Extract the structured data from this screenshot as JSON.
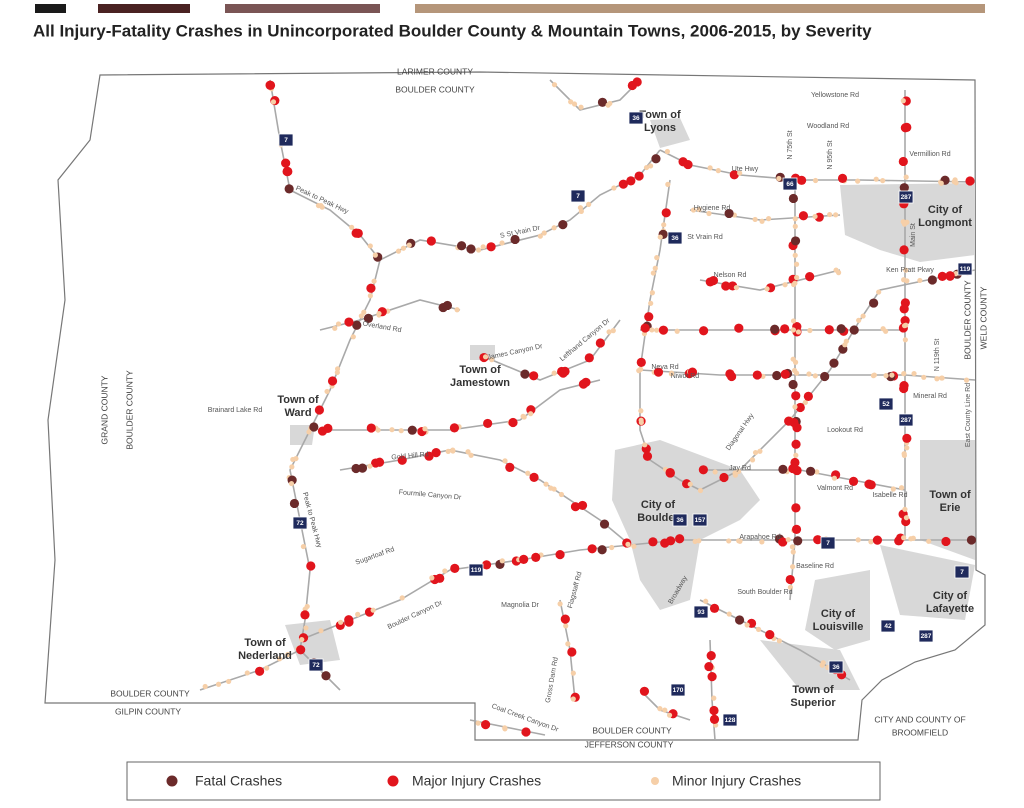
{
  "title": "All Injury-Fatality Crashes in Unincorporated Boulder County & Mountain Towns, 2006-2015, by Severity",
  "legend": [
    {
      "label": "Fatal Crashes",
      "color": "#6b2a2a"
    },
    {
      "label": "Major Injury Crashes",
      "color": "#e1151d"
    },
    {
      "label": "Minor Injury Crashes",
      "color": "#f6cfa8"
    }
  ],
  "places": [
    {
      "lines": [
        "Town of",
        "Lyons"
      ]
    },
    {
      "lines": [
        "Town of",
        "Jamestown"
      ]
    },
    {
      "lines": [
        "Town of",
        "Ward"
      ]
    },
    {
      "lines": [
        "City of",
        "Longmont"
      ]
    },
    {
      "lines": [
        "City of",
        "Boulder"
      ]
    },
    {
      "lines": [
        "Town of",
        "Erie"
      ]
    },
    {
      "lines": [
        "City of",
        "Lafayette"
      ]
    },
    {
      "lines": [
        "City of",
        "Louisville"
      ]
    },
    {
      "lines": [
        "Town of",
        "Superior"
      ]
    },
    {
      "lines": [
        "Town of",
        "Nederland"
      ]
    }
  ],
  "boundaries": [
    "LARIMER COUNTY",
    "BOULDER COUNTY",
    "GRAND COUNTY",
    "BOULDER COUNTY",
    "BOULDER COUNTY",
    "GILPIN COUNTY",
    "BOULDER COUNTY",
    "JEFFERSON COUNTY",
    "CITY AND COUNTY OF",
    "BROOMFIELD",
    "BOULDER COUNTY",
    "WELD COUNTY"
  ],
  "roads": [
    "Peak to Peak Hwy",
    "Overland Rd",
    "S St Vrain Dr",
    "James Canyon Dr",
    "Lefthand Canyon Dr",
    "Gold Hill Rd",
    "Fourmile Canyon Dr",
    "Sugarloaf Rd",
    "Boulder Canyon Dr",
    "Magnolia Dr",
    "Flagstaff Rd",
    "Coal Creek Canyon Dr",
    "Gross Dam Rd",
    "Brainard Lake Rd",
    "Ute Hwy",
    "Hygiene Rd",
    "St Vrain Rd",
    "Nelson Rd",
    "Niwot Rd",
    "Jay Rd",
    "Valmont Rd",
    "Arapahoe Rd",
    "Baseline Rd",
    "South Boulder Rd",
    "Lookout Rd",
    "Isabelle Rd",
    "Mineral Rd",
    "Ken Pratt Pkwy",
    "Yellowstone Rd",
    "Woodland Rd",
    "Vermillion Rd",
    "Main St",
    "N 75th St",
    "N 95th St",
    "East County Line Rd",
    "Broadway",
    "Diagonal Hwy",
    "Peak to Peak Hwy",
    "N 119th St",
    "Neva Rd"
  ],
  "shields": [
    "36",
    "7",
    "7",
    "36",
    "287",
    "66",
    "119",
    "52",
    "287",
    "36",
    "157",
    "7",
    "93",
    "119",
    "72",
    "42",
    "287",
    "36",
    "170",
    "128",
    "72",
    "7"
  ]
}
